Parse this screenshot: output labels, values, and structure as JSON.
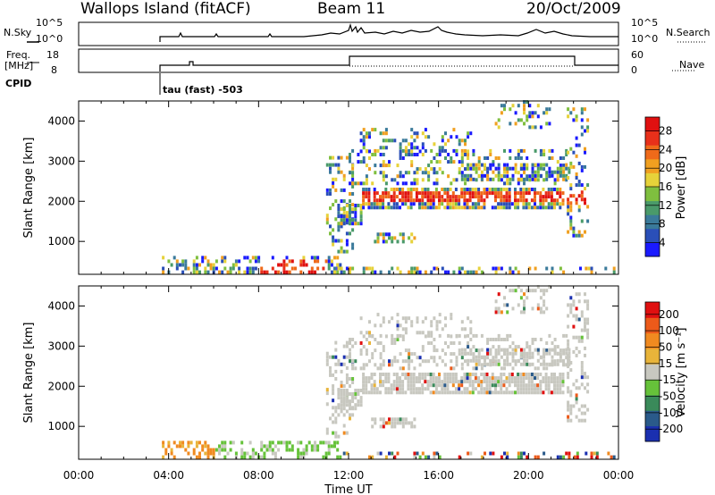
{
  "header": {
    "site": "Wallops Island (fitACF)",
    "beam": "Beam 11",
    "date": "20/Oct/2009"
  },
  "top_panels": {
    "nsky_label": "N.Sky",
    "nsky_ticks": [
      "10^5",
      "10^0"
    ],
    "nsearch_label": "N.Search",
    "nsearch_ticks": [
      "10^5",
      "10^0"
    ],
    "freq_label_1": "Freq.",
    "freq_label_2": "[MHz]",
    "freq_ticks": [
      "18",
      "8"
    ],
    "nave_label": "Nave",
    "nave_ticks": [
      "60",
      "0"
    ],
    "cpid_label": "CPID",
    "cpid_value": "tau (fast) -503"
  },
  "chart_data": [
    {
      "type": "heatmap",
      "name": "power",
      "ylabel": "Slant Range [km]",
      "yticks": [
        1000,
        2000,
        3000,
        4000
      ],
      "ylim": [
        180,
        4500
      ],
      "xlim": [
        0,
        24
      ],
      "colorbar_label": "Power [dB]",
      "colorbar_ticks": [
        "28",
        "24",
        "20",
        "16",
        "12",
        "8",
        "4"
      ],
      "colorbar_colors": [
        "#1a1aff",
        "#2a4fb8",
        "#3a7a9a",
        "#4a9a6a",
        "#7fbf3f",
        "#e6d23a",
        "#f0a020",
        "#ef6a1a",
        "#e8301a",
        "#e01010"
      ]
    },
    {
      "type": "heatmap",
      "name": "velocity",
      "ylabel": "Slant Range [km]",
      "yticks": [
        1000,
        2000,
        3000,
        4000
      ],
      "ylim": [
        180,
        4500
      ],
      "xlim": [
        0,
        24
      ],
      "colorbar_label": "Velocity [m s⁻¹]",
      "colorbar_ticks": [
        "200",
        "100",
        "50",
        "15",
        "-15",
        "-50",
        "-100",
        "-200"
      ],
      "colorbar_colors": [
        "#1a2fb0",
        "#2a5a8a",
        "#3a8a5a",
        "#66c23a",
        "#c8c8c0",
        "#e8b43a",
        "#f08a20",
        "#ec5a1a",
        "#e01010"
      ]
    }
  ],
  "xaxis": {
    "label": "Time UT",
    "ticks": [
      "00:00",
      "04:00",
      "08:00",
      "12:00",
      "16:00",
      "20:00",
      "00:00"
    ]
  }
}
